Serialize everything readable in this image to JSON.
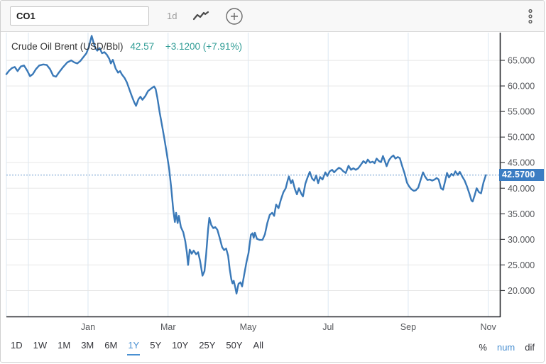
{
  "toolbar": {
    "ticker": "CO1",
    "interval": "1d",
    "icons": [
      "line-chart",
      "add-circle",
      "kebab-menu"
    ]
  },
  "header": {
    "instrument": "Crude Oil Brent (USD/Bbl)",
    "price": "42.57",
    "change": "+3.1200 (+7.91%)"
  },
  "badge": {
    "label": "42.5700",
    "bg": "#3b7dc3"
  },
  "ranges": {
    "options": [
      "1D",
      "1W",
      "1M",
      "3M",
      "6M",
      "1Y",
      "5Y",
      "10Y",
      "25Y",
      "50Y",
      "All"
    ],
    "selected": "1Y"
  },
  "formats": {
    "options": [
      "%",
      "num",
      "dif"
    ],
    "selected": "num"
  },
  "chart_data": {
    "type": "line",
    "title": "Crude Oil Brent (USD/Bbl)",
    "last_price": 42.57,
    "change_abs": "+3.1200",
    "change_pct": "+7.91%",
    "x_unit": "months, 0 = Jan tick",
    "xlim": [
      -2.04,
      10.29
    ],
    "ylim": [
      14.93,
      70.42
    ],
    "x_gridlines": [
      -2.04,
      -1.49,
      0,
      2,
      4,
      6,
      8,
      10
    ],
    "x_tick_labels": [
      {
        "label": "Jan",
        "x": 0
      },
      {
        "label": "Mar",
        "x": 2
      },
      {
        "label": "May",
        "x": 4
      },
      {
        "label": "Jul",
        "x": 6
      },
      {
        "label": "Sep",
        "x": 8
      },
      {
        "label": "Nov",
        "x": 10
      }
    ],
    "y_ticks": [
      {
        "value": 65,
        "label": "65.000"
      },
      {
        "value": 60,
        "label": "60.000"
      },
      {
        "value": 55,
        "label": "55.000"
      },
      {
        "value": 50,
        "label": "50.000"
      },
      {
        "value": 45,
        "label": "45.000"
      },
      {
        "value": 40,
        "label": "40.000"
      },
      {
        "value": 35,
        "label": "35.000"
      },
      {
        "value": 30,
        "label": "30.000"
      },
      {
        "value": 25,
        "label": "25.000"
      },
      {
        "value": 20,
        "label": "20.000"
      }
    ],
    "grid": true,
    "legend": "none",
    "colors": {
      "series": "#3a79b8",
      "grid_h": "#e7e7e7",
      "grid_v": "#dbe7f1",
      "price_line": "#8fb2da",
      "spine": "#24262a",
      "tick_label": "#55575b",
      "teal": "#2f9c95",
      "selected_blue": "#4a90d2"
    },
    "series": [
      {
        "name": "CO1",
        "color": "#3a79b8",
        "points": [
          [
            -2.04,
            62.3
          ],
          [
            -1.97,
            63.0
          ],
          [
            -1.9,
            63.5
          ],
          [
            -1.83,
            63.7
          ],
          [
            -1.76,
            62.9
          ],
          [
            -1.68,
            63.8
          ],
          [
            -1.6,
            64.0
          ],
          [
            -1.52,
            63.0
          ],
          [
            -1.45,
            61.9
          ],
          [
            -1.38,
            62.3
          ],
          [
            -1.3,
            63.3
          ],
          [
            -1.22,
            64.0
          ],
          [
            -1.12,
            64.2
          ],
          [
            -1.03,
            64.1
          ],
          [
            -0.95,
            63.3
          ],
          [
            -0.87,
            62.0
          ],
          [
            -0.8,
            61.8
          ],
          [
            -0.72,
            62.7
          ],
          [
            -0.62,
            63.7
          ],
          [
            -0.52,
            64.6
          ],
          [
            -0.42,
            65.0
          ],
          [
            -0.34,
            64.6
          ],
          [
            -0.27,
            64.4
          ],
          [
            -0.19,
            64.9
          ],
          [
            -0.1,
            65.8
          ],
          [
            -0.04,
            66.4
          ],
          [
            0.02,
            67.6
          ],
          [
            0.09,
            69.8
          ],
          [
            0.14,
            68.4
          ],
          [
            0.19,
            67.3
          ],
          [
            0.23,
            66.9
          ],
          [
            0.29,
            67.4
          ],
          [
            0.35,
            66.4
          ],
          [
            0.41,
            66.6
          ],
          [
            0.47,
            66.1
          ],
          [
            0.53,
            65.3
          ],
          [
            0.57,
            64.4
          ],
          [
            0.62,
            65.1
          ],
          [
            0.69,
            63.4
          ],
          [
            0.75,
            62.6
          ],
          [
            0.8,
            62.9
          ],
          [
            0.85,
            62.2
          ],
          [
            0.91,
            61.6
          ],
          [
            0.97,
            60.7
          ],
          [
            1.03,
            59.4
          ],
          [
            1.09,
            58.1
          ],
          [
            1.15,
            56.9
          ],
          [
            1.2,
            56.1
          ],
          [
            1.26,
            57.4
          ],
          [
            1.31,
            57.9
          ],
          [
            1.36,
            57.3
          ],
          [
            1.43,
            58.0
          ],
          [
            1.5,
            59.0
          ],
          [
            1.58,
            59.5
          ],
          [
            1.65,
            59.9
          ],
          [
            1.69,
            59.4
          ],
          [
            1.73,
            57.8
          ],
          [
            1.79,
            54.8
          ],
          [
            1.85,
            52.2
          ],
          [
            1.91,
            49.6
          ],
          [
            1.97,
            46.7
          ],
          [
            2.03,
            43.6
          ],
          [
            2.08,
            40.0
          ],
          [
            2.13,
            35.8
          ],
          [
            2.17,
            33.4
          ],
          [
            2.2,
            35.2
          ],
          [
            2.24,
            33.2
          ],
          [
            2.27,
            34.6
          ],
          [
            2.32,
            32.4
          ],
          [
            2.38,
            31.4
          ],
          [
            2.43,
            29.6
          ],
          [
            2.47,
            27.4
          ],
          [
            2.5,
            25.0
          ],
          [
            2.54,
            28.0
          ],
          [
            2.59,
            27.2
          ],
          [
            2.64,
            27.8
          ],
          [
            2.7,
            27.1
          ],
          [
            2.75,
            27.5
          ],
          [
            2.8,
            25.8
          ],
          [
            2.86,
            22.9
          ],
          [
            2.91,
            23.8
          ],
          [
            2.95,
            27.0
          ],
          [
            3.0,
            32.0
          ],
          [
            3.03,
            34.2
          ],
          [
            3.08,
            32.8
          ],
          [
            3.13,
            32.2
          ],
          [
            3.18,
            32.4
          ],
          [
            3.23,
            31.9
          ],
          [
            3.29,
            30.3
          ],
          [
            3.35,
            28.5
          ],
          [
            3.4,
            27.9
          ],
          [
            3.45,
            28.2
          ],
          [
            3.5,
            26.8
          ],
          [
            3.54,
            24.2
          ],
          [
            3.58,
            22.2
          ],
          [
            3.61,
            21.4
          ],
          [
            3.64,
            21.9
          ],
          [
            3.68,
            20.6
          ],
          [
            3.71,
            19.4
          ],
          [
            3.76,
            21.3
          ],
          [
            3.81,
            21.6
          ],
          [
            3.85,
            20.8
          ],
          [
            3.9,
            23.0
          ],
          [
            3.96,
            25.6
          ],
          [
            4.01,
            27.3
          ],
          [
            4.07,
            30.9
          ],
          [
            4.11,
            31.2
          ],
          [
            4.14,
            30.3
          ],
          [
            4.17,
            31.3
          ],
          [
            4.22,
            30.1
          ],
          [
            4.29,
            29.9
          ],
          [
            4.36,
            29.9
          ],
          [
            4.42,
            31.0
          ],
          [
            4.48,
            33.2
          ],
          [
            4.54,
            34.8
          ],
          [
            4.6,
            35.2
          ],
          [
            4.65,
            34.6
          ],
          [
            4.7,
            36.8
          ],
          [
            4.76,
            36.1
          ],
          [
            4.82,
            37.8
          ],
          [
            4.88,
            39.2
          ],
          [
            4.94,
            40.0
          ],
          [
            4.99,
            41.6
          ],
          [
            5.02,
            42.3
          ],
          [
            5.07,
            41.0
          ],
          [
            5.11,
            41.6
          ],
          [
            5.17,
            39.8
          ],
          [
            5.22,
            38.8
          ],
          [
            5.27,
            40.0
          ],
          [
            5.33,
            38.9
          ],
          [
            5.37,
            38.4
          ],
          [
            5.43,
            40.9
          ],
          [
            5.49,
            42.2
          ],
          [
            5.54,
            43.2
          ],
          [
            5.6,
            41.9
          ],
          [
            5.65,
            41.5
          ],
          [
            5.7,
            42.5
          ],
          [
            5.75,
            41.0
          ],
          [
            5.8,
            42.2
          ],
          [
            5.86,
            41.7
          ],
          [
            5.93,
            43.1
          ],
          [
            5.98,
            42.4
          ],
          [
            6.04,
            43.3
          ],
          [
            6.1,
            43.6
          ],
          [
            6.15,
            43.1
          ],
          [
            6.21,
            43.6
          ],
          [
            6.27,
            44.0
          ],
          [
            6.32,
            43.8
          ],
          [
            6.38,
            43.3
          ],
          [
            6.44,
            43.0
          ],
          [
            6.51,
            44.4
          ],
          [
            6.57,
            43.6
          ],
          [
            6.63,
            43.9
          ],
          [
            6.69,
            43.6
          ],
          [
            6.75,
            43.9
          ],
          [
            6.81,
            44.5
          ],
          [
            6.88,
            45.3
          ],
          [
            6.94,
            44.9
          ],
          [
            6.99,
            45.6
          ],
          [
            7.05,
            45.0
          ],
          [
            7.11,
            45.2
          ],
          [
            7.16,
            44.9
          ],
          [
            7.21,
            45.8
          ],
          [
            7.27,
            45.3
          ],
          [
            7.32,
            45.1
          ],
          [
            7.37,
            46.3
          ],
          [
            7.43,
            45.0
          ],
          [
            7.46,
            44.3
          ],
          [
            7.52,
            45.5
          ],
          [
            7.58,
            46.1
          ],
          [
            7.63,
            46.4
          ],
          [
            7.68,
            45.8
          ],
          [
            7.74,
            46.1
          ],
          [
            7.79,
            45.9
          ],
          [
            7.85,
            44.3
          ],
          [
            7.91,
            42.9
          ],
          [
            7.97,
            41.1
          ],
          [
            8.02,
            40.4
          ],
          [
            8.08,
            39.8
          ],
          [
            8.14,
            39.5
          ],
          [
            8.19,
            39.6
          ],
          [
            8.25,
            40.1
          ],
          [
            8.31,
            41.6
          ],
          [
            8.37,
            43.1
          ],
          [
            8.42,
            42.3
          ],
          [
            8.48,
            41.6
          ],
          [
            8.54,
            41.7
          ],
          [
            8.6,
            41.5
          ],
          [
            8.66,
            41.7
          ],
          [
            8.71,
            42.0
          ],
          [
            8.76,
            41.7
          ],
          [
            8.82,
            40.0
          ],
          [
            8.87,
            39.7
          ],
          [
            8.92,
            41.3
          ],
          [
            8.97,
            43.0
          ],
          [
            9.02,
            42.1
          ],
          [
            9.08,
            42.8
          ],
          [
            9.13,
            42.5
          ],
          [
            9.18,
            43.3
          ],
          [
            9.24,
            42.6
          ],
          [
            9.29,
            43.2
          ],
          [
            9.35,
            42.3
          ],
          [
            9.41,
            41.5
          ],
          [
            9.47,
            40.3
          ],
          [
            9.53,
            38.9
          ],
          [
            9.58,
            37.6
          ],
          [
            9.61,
            37.4
          ],
          [
            9.66,
            38.6
          ],
          [
            9.71,
            40.0
          ],
          [
            9.77,
            39.2
          ],
          [
            9.82,
            39.0
          ],
          [
            9.88,
            41.1
          ],
          [
            9.94,
            42.57
          ]
        ]
      }
    ]
  }
}
